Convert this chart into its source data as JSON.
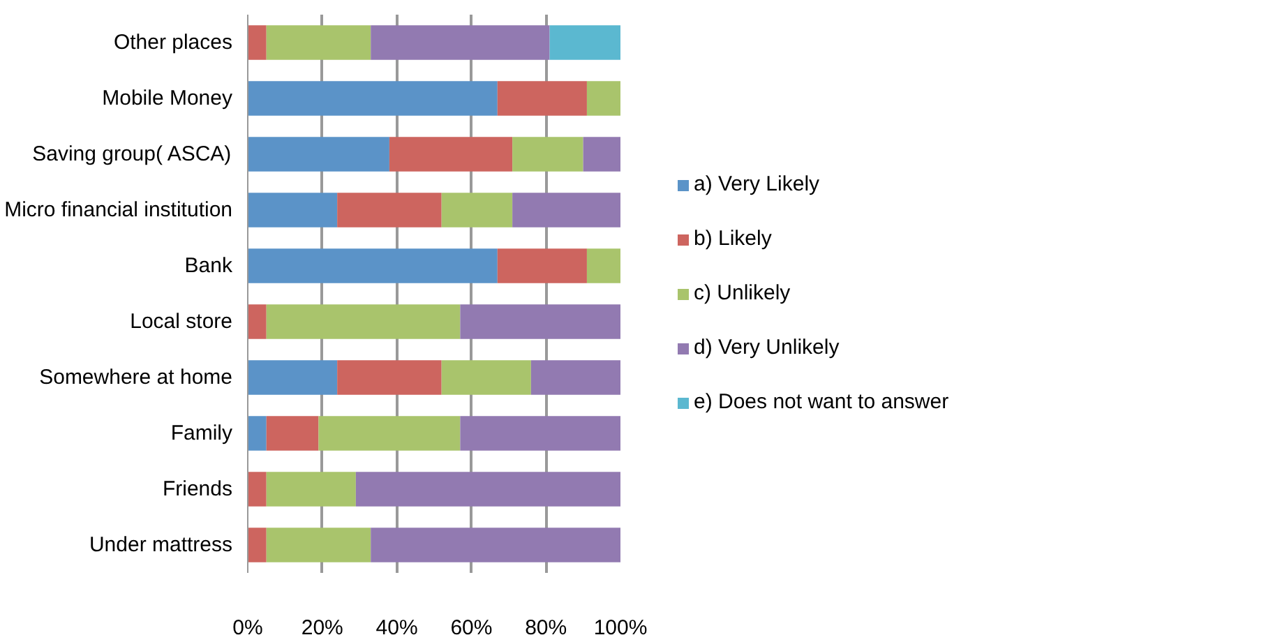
{
  "chart_data": {
    "type": "bar",
    "orientation": "horizontal",
    "stacked": true,
    "grid": "x",
    "legend": "right",
    "categories": [
      "Other places",
      "Mobile Money",
      "Saving group( ASCA)",
      "Micro financial institution",
      "Bank",
      "Local store",
      "Somewhere at home",
      "Family",
      "Friends",
      "Under mattress"
    ],
    "xlim": [
      0,
      100
    ],
    "xticks": [
      {
        "value": 0,
        "label": "0%"
      },
      {
        "value": 20,
        "label": "20%"
      },
      {
        "value": 40,
        "label": "40%"
      },
      {
        "value": 60,
        "label": "60%"
      },
      {
        "value": 80,
        "label": "80%"
      },
      {
        "value": 100,
        "label": "100%"
      }
    ],
    "series": [
      {
        "name": "a) Very Likely",
        "color": "#5b93c8",
        "values": [
          0,
          67,
          38,
          24,
          67,
          0,
          24,
          5,
          0,
          0
        ]
      },
      {
        "name": "b) Likely",
        "color": "#cd655f",
        "values": [
          5,
          24,
          33,
          28,
          24,
          5,
          28,
          14,
          5,
          5
        ]
      },
      {
        "name": "c) Unlikely",
        "color": "#a9c46c",
        "values": [
          28,
          9,
          19,
          19,
          9,
          52,
          24,
          38,
          24,
          28
        ]
      },
      {
        "name": "d) Very Unlikely",
        "color": "#927ab1",
        "values": [
          48,
          0,
          10,
          29,
          0,
          43,
          24,
          43,
          71,
          67
        ]
      },
      {
        "name": "e) Does not want to answer",
        "color": "#5bb8d0",
        "values": [
          19,
          0,
          0,
          0,
          0,
          0,
          0,
          0,
          0,
          0
        ]
      }
    ]
  }
}
